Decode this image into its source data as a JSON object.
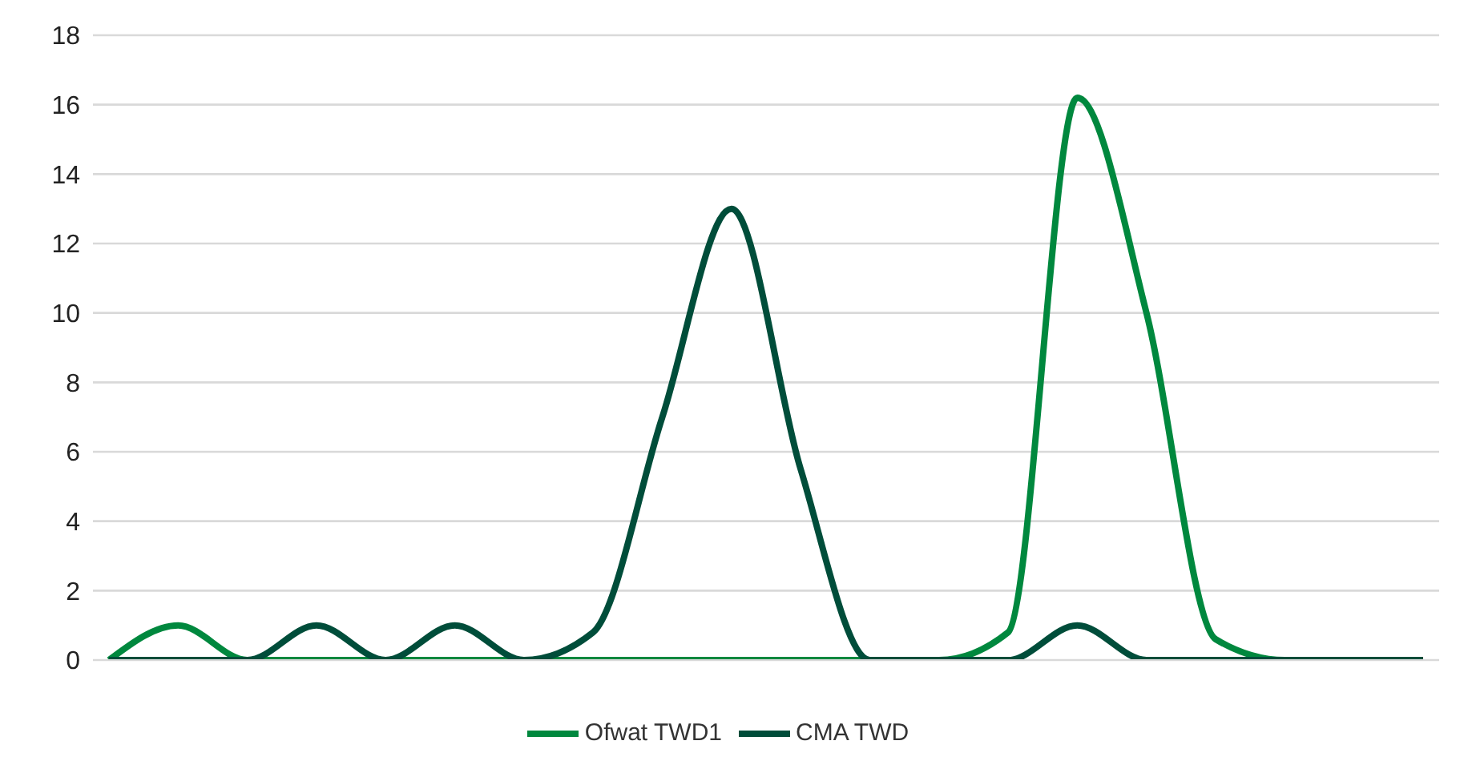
{
  "chart_data": {
    "type": "line",
    "categories": [
      null,
      null,
      null,
      null,
      null,
      null,
      null,
      null,
      null,
      null,
      null,
      null,
      null,
      null,
      null,
      null,
      null,
      null,
      null,
      null
    ],
    "series": [
      {
        "name": "Ofwat TWD1",
        "color": "#00883e",
        "values": [
          0,
          1,
          0,
          0,
          0,
          0,
          0,
          0,
          0,
          0,
          0,
          0,
          0,
          0.8,
          16.2,
          10,
          0.6,
          0,
          0,
          0
        ]
      },
      {
        "name": "CMA TWD",
        "color": "#004d3a",
        "values": [
          0,
          0,
          0,
          1,
          0,
          1,
          0,
          0.8,
          7,
          13,
          5.5,
          0,
          0,
          0,
          1,
          0,
          0,
          0,
          0,
          0
        ]
      }
    ],
    "ylim": [
      0,
      18
    ],
    "yticks": [
      0,
      2,
      4,
      6,
      8,
      10,
      12,
      14,
      16,
      18
    ],
    "grid": "y",
    "legend": "bottom",
    "marker": "none",
    "line_style": "solid"
  }
}
